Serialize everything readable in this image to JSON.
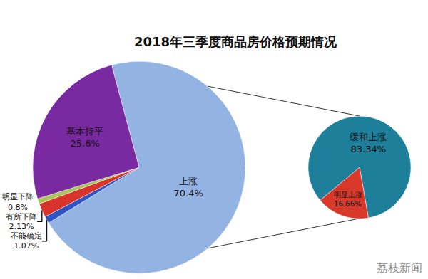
{
  "chart_data": [
    {
      "type": "pie",
      "title": "2018年三季度商品房价格预期情况",
      "categories": [
        "上涨",
        "不能确定",
        "有所下降",
        "明显下降",
        "基本持平"
      ],
      "values": [
        70.4,
        1.07,
        2.13,
        0.8,
        25.6
      ],
      "value_labels": [
        "70.4%",
        "1.07%",
        "2.13%",
        "0.8%",
        "25.6%"
      ],
      "colors": [
        "#93b3e3",
        "#2f55c4",
        "#d8342c",
        "#a8c45a",
        "#7a2aa0"
      ],
      "data_labels": true,
      "annotations": [
        "荔枝新闻"
      ]
    },
    {
      "type": "pie",
      "categories": [
        "缓和上涨",
        "明显上涨"
      ],
      "values": [
        83.34,
        16.66
      ],
      "value_labels": [
        "83.34%",
        "16.66%"
      ],
      "colors": [
        "#1e7f9b",
        "#d8392a"
      ],
      "data_labels": true
    }
  ]
}
